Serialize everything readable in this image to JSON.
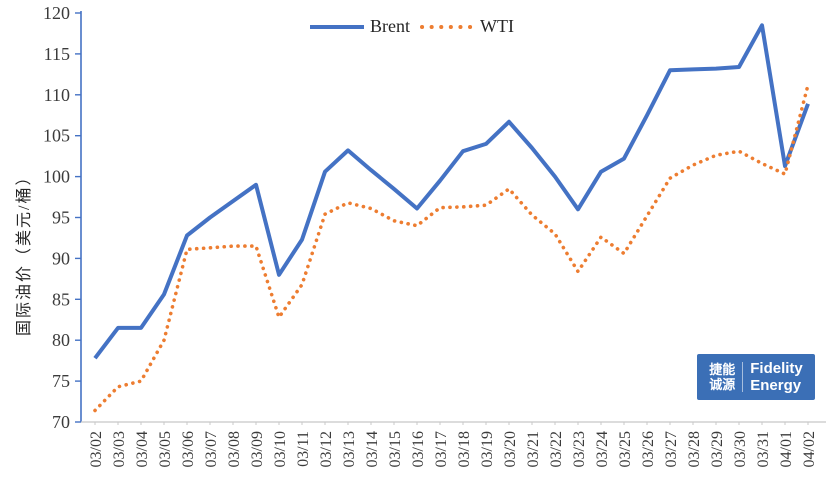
{
  "chart_data": {
    "type": "line",
    "title": "",
    "xlabel": "",
    "ylabel": "国际油价（美元/桶）",
    "ylim": [
      70,
      120
    ],
    "ytick_step": 5,
    "grid": false,
    "legend_position": "top-center",
    "categories": [
      "03/02",
      "03/03",
      "03/04",
      "03/05",
      "03/06",
      "03/07",
      "03/08",
      "03/09",
      "03/10",
      "03/11",
      "03/12",
      "03/13",
      "03/14",
      "03/15",
      "03/16",
      "03/17",
      "03/18",
      "03/19",
      "03/20",
      "03/21",
      "03/22",
      "03/23",
      "03/24",
      "03/25",
      "03/26",
      "03/27",
      "03/28",
      "03/29",
      "03/30",
      "03/31",
      "04/01",
      "04/02"
    ],
    "series": [
      {
        "name": "Brent",
        "style": "solid",
        "color": "#4472C4",
        "values": [
          77.8,
          81.5,
          81.5,
          85.6,
          92.8,
          95.0,
          97.0,
          99.0,
          88.0,
          92.3,
          100.6,
          103.2,
          100.8,
          98.5,
          96.1,
          99.5,
          103.1,
          104.0,
          106.7,
          103.5,
          100.0,
          96.0,
          100.6,
          102.2,
          107.5,
          113.0,
          113.1,
          113.2,
          113.4,
          118.5,
          101.3,
          108.9
        ]
      },
      {
        "name": "WTI",
        "style": "dotted",
        "color": "#ED7D31",
        "values": [
          71.4,
          74.3,
          75.0,
          80.0,
          91.1,
          91.3,
          91.5,
          91.5,
          82.8,
          86.8,
          95.4,
          96.8,
          96.1,
          94.6,
          94.0,
          96.2,
          96.3,
          96.5,
          98.5,
          95.3,
          93.0,
          88.4,
          92.6,
          90.6,
          95.2,
          99.8,
          101.4,
          102.6,
          103.1,
          101.6,
          100.3,
          111.2
        ]
      }
    ]
  },
  "colors": {
    "y_axis": "#4472C4",
    "x_axis": "#C8C8C8",
    "tick_text": "#3B3B3B"
  },
  "logo": {
    "bg_color": "#3B6FB6",
    "cn_line1": "捷能",
    "cn_line2": "诚源",
    "en_line1": "Fidelity",
    "en_line2": "Energy"
  }
}
